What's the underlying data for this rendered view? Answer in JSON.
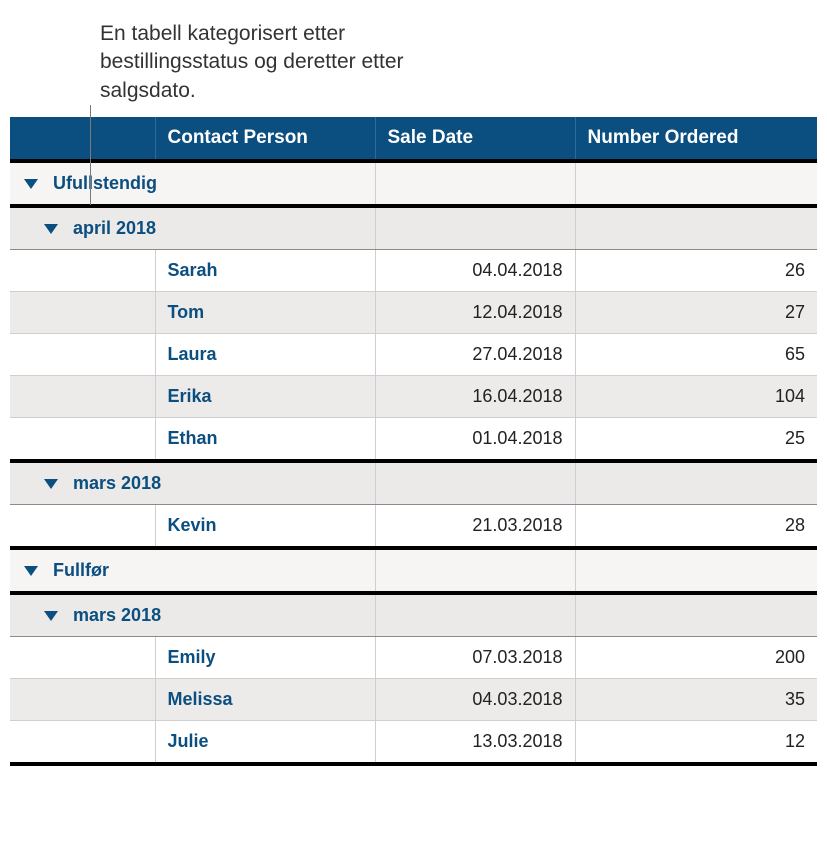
{
  "caption": "En tabell kategorisert etter bestillingsstatus og deretter etter salgsdato.",
  "columns": {
    "c0": "",
    "c1": "Contact Person",
    "c2": "Sale Date",
    "c3": "Number Ordered"
  },
  "colors": {
    "header_bg": "#0b4e80",
    "header_fg": "#ffffff",
    "group_l1_bg": "#f6f5f3",
    "group_l2_bg": "#ebeae8",
    "alt_row_bg": "#ecebe9",
    "accent": "#0b4e80",
    "border_heavy": "#000000",
    "border_light": "#cfcfcf"
  },
  "groups": [
    {
      "label": "Ufullstendig",
      "subgroups": [
        {
          "label": "april 2018",
          "rows": [
            {
              "contact": "Sarah",
              "date": "04.04.2018",
              "num": "26"
            },
            {
              "contact": "Tom",
              "date": "12.04.2018",
              "num": "27"
            },
            {
              "contact": "Laura",
              "date": "27.04.2018",
              "num": "65"
            },
            {
              "contact": "Erika",
              "date": "16.04.2018",
              "num": "104"
            },
            {
              "contact": "Ethan",
              "date": "01.04.2018",
              "num": "25"
            }
          ]
        },
        {
          "label": "mars 2018",
          "rows": [
            {
              "contact": "Kevin",
              "date": "21.03.2018",
              "num": "28"
            }
          ]
        }
      ]
    },
    {
      "label": "Fullfør",
      "subgroups": [
        {
          "label": "mars 2018",
          "rows": [
            {
              "contact": "Emily",
              "date": "07.03.2018",
              "num": "200"
            },
            {
              "contact": "Melissa",
              "date": "04.03.2018",
              "num": "35"
            },
            {
              "contact": "Julie",
              "date": "13.03.2018",
              "num": "12"
            }
          ]
        }
      ]
    }
  ]
}
